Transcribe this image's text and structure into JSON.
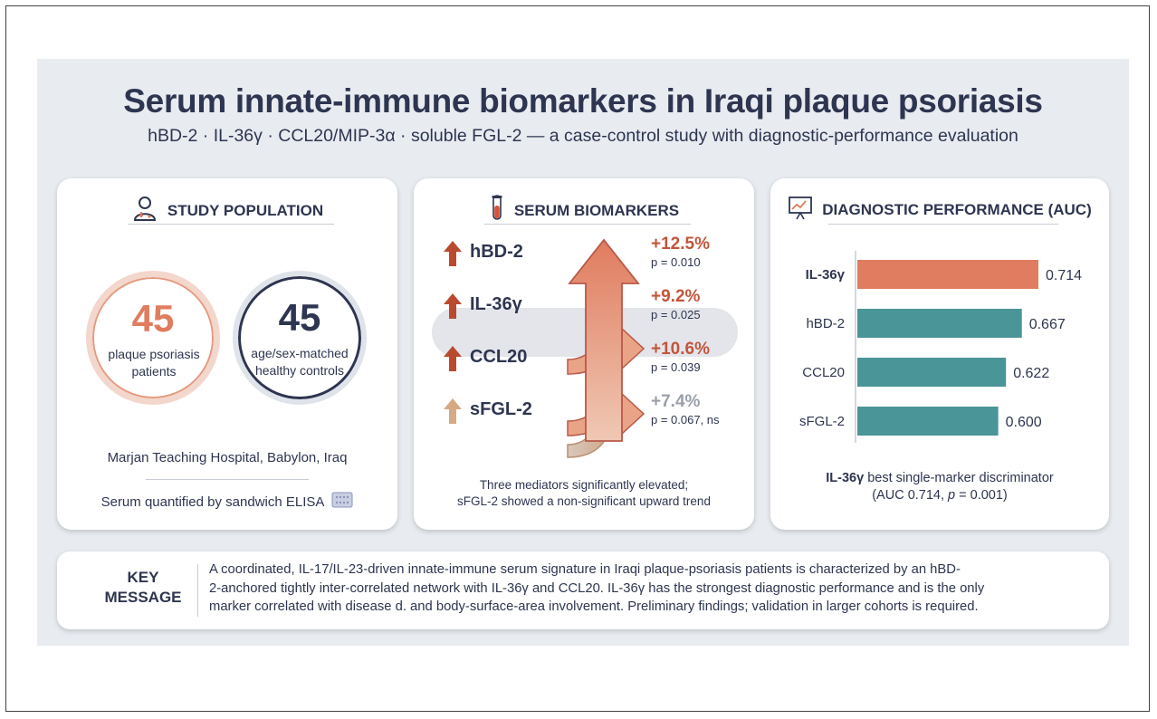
{
  "title": "Serum innate-immune biomarkers in Iraqi plaque psoriasis",
  "subtitle": "hBD-2 · IL-36γ · CCL20/MIP-3α · soluble FGL-2 — a case-control study with diagnostic-performance evaluation",
  "colors": {
    "accent_orange": "#e07c5f",
    "accent_teal": "#4a9598",
    "navy": "#2e3550",
    "muted_tan": "#d6a985"
  },
  "population": {
    "heading": "STUDY POPULATION",
    "icon": "doctor-icon",
    "patients_count": "45",
    "patients_label": "plaque psoriasis patients",
    "controls_count": "45",
    "controls_label": "age/sex-matched healthy controls",
    "site": "Marjan Teaching Hospital, Babylon, Iraq",
    "method": "Serum quantified by sandwich ELISA"
  },
  "biomarkers": {
    "heading": "SERUM BIOMARKERS",
    "icon": "test-tube-icon",
    "items": [
      {
        "name": "hBD-2",
        "change": "+12.5%",
        "p": "p = 0.010"
      },
      {
        "name": "IL-36γ",
        "change": "+9.2%",
        "p": "p = 0.025"
      },
      {
        "name": "CCL20",
        "change": "+10.6%",
        "p": "p = 0.039"
      },
      {
        "name": "sFGL-2",
        "change": "+7.4%",
        "p": "p = 0.067, ns"
      }
    ],
    "note_line1": "Three mediators significantly elevated;",
    "note_line2": "sFGL-2 showed a non-significant upward trend"
  },
  "auc": {
    "heading": "DIAGNOSTIC PERFORMANCE (AUC)",
    "icon": "presentation-chart-icon",
    "note_bold": "IL-36γ",
    "note_rest": " best single-marker discriminator",
    "note_line2_a": "(AUC 0.714, ",
    "note_line2_p": "p",
    "note_line2_b": " = 0.001)"
  },
  "chart_data": {
    "type": "bar",
    "orientation": "horizontal",
    "categories": [
      "IL-36γ",
      "hBD-2",
      "CCL20",
      "sFGL-2"
    ],
    "values": [
      0.714,
      0.667,
      0.622,
      0.6
    ],
    "value_labels": [
      "0.714",
      "0.667",
      "0.622",
      "0.600"
    ],
    "highlight_category": "IL-36γ",
    "title": "DIAGNOSTIC PERFORMANCE (AUC)",
    "xlabel": "",
    "ylabel": "",
    "grid": false
  },
  "key_message": {
    "label_line1": "KEY",
    "label_line2": "MESSAGE",
    "line1": "A coordinated, IL-17/IL-23-driven innate-immune serum signature in Iraqi plaque-psoriasis patients is characterized by an hBD-",
    "line2": "2-anchored tightly inter-correlated network with IL-36γ and CCL20. IL-36γ has the strongest diagnostic performance and is the only",
    "line3": "marker correlated with disease d. and body-surface-area involvement. Preliminary findings; validation in larger cohorts is required."
  }
}
